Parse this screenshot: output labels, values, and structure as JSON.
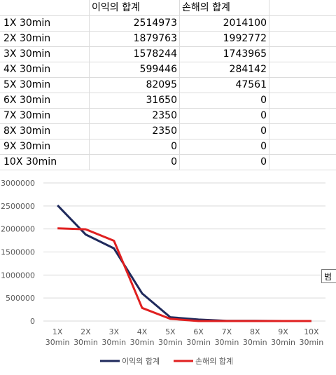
{
  "table": {
    "headers": [
      "",
      "이익의 합계",
      "손해의 합계"
    ],
    "rows": [
      {
        "label": "1X 30min",
        "profit": "2514973",
        "loss": "2014100"
      },
      {
        "label": "2X 30min",
        "profit": "1879763",
        "loss": "1992772"
      },
      {
        "label": "3X 30min",
        "profit": "1578244",
        "loss": "1743965"
      },
      {
        "label": "4X 30min",
        "profit": "599446",
        "loss": "284142"
      },
      {
        "label": "5X 30min",
        "profit": "82095",
        "loss": "47561"
      },
      {
        "label": "6X 30min",
        "profit": "31650",
        "loss": "0"
      },
      {
        "label": "7X 30min",
        "profit": "2350",
        "loss": "0"
      },
      {
        "label": "8X 30min",
        "profit": "2350",
        "loss": "0"
      },
      {
        "label": "9X 30min",
        "profit": "0",
        "loss": "0"
      },
      {
        "label": "10X 30min",
        "profit": "0",
        "loss": "0"
      }
    ]
  },
  "tooltip_text": "범",
  "chart_data": {
    "type": "line",
    "categories": [
      [
        "1X",
        "30min"
      ],
      [
        "2X",
        "30min"
      ],
      [
        "3X",
        "30min"
      ],
      [
        "4X",
        "30min"
      ],
      [
        "5X",
        "30min"
      ],
      [
        "6X",
        "30min"
      ],
      [
        "7X",
        "30min"
      ],
      [
        "8X",
        "30min"
      ],
      [
        "9X",
        "30min"
      ],
      [
        "10X",
        "30min"
      ]
    ],
    "series": [
      {
        "name": "이익의 합계",
        "color": "#1f2a5c",
        "values": [
          2514973,
          1879763,
          1578244,
          599446,
          82095,
          31650,
          2350,
          2350,
          0,
          0
        ]
      },
      {
        "name": "손해의 합계",
        "color": "#e02020",
        "values": [
          2014100,
          1992772,
          1743965,
          284142,
          47561,
          0,
          0,
          0,
          0,
          0
        ]
      }
    ],
    "y_ticks": [
      "3000000",
      "2500000",
      "2000000",
      "1500000",
      "1000000",
      "500000",
      "0"
    ],
    "ylim": [
      0,
      3000000
    ],
    "grid": true,
    "legend_position": "bottom"
  }
}
